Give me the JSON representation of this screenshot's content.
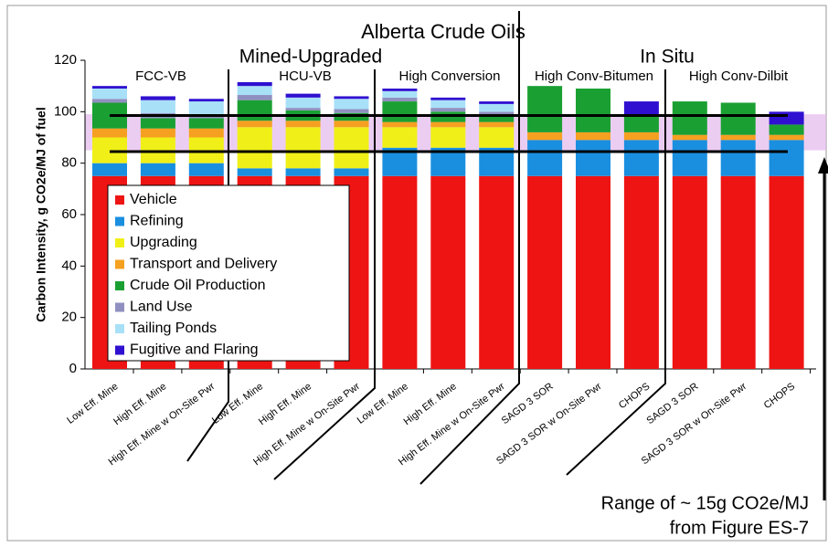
{
  "chart_data": {
    "type": "stacked_bar",
    "title": "Alberta Crude Oils",
    "section_labels": [
      "Mined-Upgraded",
      "In Situ"
    ],
    "groups": [
      "FCC-VB",
      "HCU-VB",
      "High Conversion",
      "High Conv-Bitumen",
      "High Conv-Dilbit"
    ],
    "y_label": "Carbon Intensity, g CO2e/MJ of fuel",
    "annotation": [
      "Range of ~ 15g CO2e/MJ",
      "from Figure ES-7"
    ],
    "categories": [
      "Low Eff. Mine",
      "High Eff. Mine",
      "High Eff. Mine w On-Site Pwr",
      "Low Eff. Mine",
      "High Eff. Mine",
      "High Eff. Mine w On-Site Pwr",
      "Low Eff. Mine",
      "High Eff. Mine",
      "High Eff. Mine w On-Site Pwr",
      "SAGD 3 SOR",
      "SAGD 3 SOR w On-Site Pwr",
      "CHOPS",
      "SAGD 3 SOR",
      "SAGD 3 SOR w On-Site Pwr",
      "CHOPS"
    ],
    "series": [
      {
        "name": "Vehicle",
        "color": "#ee1414",
        "values": [
          75,
          75,
          75,
          75,
          75,
          75,
          75,
          75,
          75,
          75,
          75,
          75,
          75,
          75,
          75
        ]
      },
      {
        "name": "Refining",
        "color": "#1a8fe0",
        "values": [
          5,
          5,
          5,
          3,
          3,
          3,
          11,
          11,
          11,
          14,
          14,
          14,
          14,
          14,
          14
        ]
      },
      {
        "name": "Upgrading",
        "color": "#f0f018",
        "values": [
          10,
          10,
          10,
          16,
          16,
          16,
          8,
          8,
          8,
          0,
          0,
          0,
          0,
          0,
          0
        ]
      },
      {
        "name": "Transport and Delivery",
        "color": "#f5a020",
        "values": [
          3.5,
          3.5,
          3.5,
          2.5,
          2.5,
          2.5,
          2,
          2,
          2,
          3,
          3,
          3,
          2,
          2,
          2
        ]
      },
      {
        "name": "Crude Oil Production",
        "color": "#1aa032",
        "values": [
          10,
          4,
          4,
          8,
          4,
          3,
          8,
          4,
          3,
          18,
          17,
          6,
          13,
          12.5,
          4
        ]
      },
      {
        "name": "Land Use",
        "color": "#9090c0",
        "values": [
          1.5,
          2,
          1.5,
          2,
          1,
          1.5,
          1.5,
          1.5,
          1,
          0,
          0,
          0,
          0,
          0,
          0
        ]
      },
      {
        "name": "Tailing Ponds",
        "color": "#a8e0f8",
        "values": [
          4,
          5,
          5,
          3.5,
          4,
          4,
          2.5,
          3,
          3,
          0,
          0,
          0,
          0,
          0,
          0
        ]
      },
      {
        "name": "Fugitive and Flaring",
        "color": "#3010d0",
        "values": [
          1,
          1.5,
          1,
          1.5,
          1.5,
          1,
          1,
          1,
          1,
          0,
          0,
          6,
          0,
          0,
          5
        ]
      }
    ],
    "ylim": [
      0,
      120
    ],
    "yticks": [
      0,
      20,
      40,
      60,
      80,
      100,
      120
    ],
    "range_band": [
      85,
      99
    ],
    "range_lines": [
      84.5,
      98.5
    ]
  }
}
